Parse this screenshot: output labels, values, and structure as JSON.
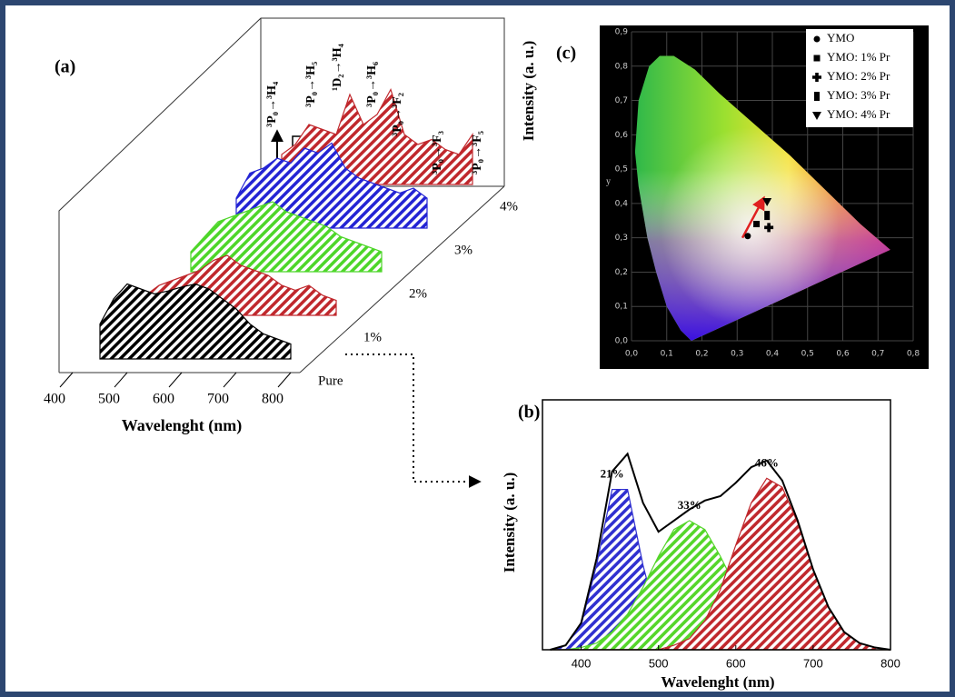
{
  "chart_data": [
    {
      "type": "waterfall",
      "panel": "(a)",
      "xlabel": "Wavelenght (nm)",
      "x": [
        450,
        475,
        500,
        525,
        550,
        575,
        600,
        625,
        650,
        675,
        700,
        725,
        750,
        775,
        800
      ],
      "xlim": [
        400,
        800
      ],
      "xticks": [
        400,
        500,
        600,
        700,
        800
      ],
      "ylim": [
        0,
        1
      ],
      "series": [
        {
          "name": "Pure",
          "color": "#000000",
          "values": [
            0.35,
            0.6,
            0.75,
            0.7,
            0.65,
            0.68,
            0.72,
            0.75,
            0.7,
            0.6,
            0.5,
            0.35,
            0.25,
            0.2,
            0.15
          ]
        },
        {
          "name": "1%",
          "color": "#c0282d",
          "values": [
            0.2,
            0.3,
            0.35,
            0.4,
            0.45,
            0.55,
            0.6,
            0.5,
            0.45,
            0.4,
            0.3,
            0.25,
            0.3,
            0.2,
            0.15
          ]
        },
        {
          "name": "2%",
          "color": "#4ed62a",
          "values": [
            0.2,
            0.35,
            0.5,
            0.55,
            0.6,
            0.65,
            0.7,
            0.6,
            0.55,
            0.5,
            0.45,
            0.35,
            0.3,
            0.25,
            0.2
          ]
        },
        {
          "name": "3%",
          "color": "#2424d4",
          "values": [
            0.3,
            0.55,
            0.6,
            0.7,
            0.65,
            0.8,
            0.75,
            0.85,
            0.6,
            0.5,
            0.45,
            0.4,
            0.35,
            0.4,
            0.3
          ]
        },
        {
          "name": "4%",
          "color": "#c0282d",
          "values": [
            0.3,
            0.4,
            0.6,
            0.55,
            0.5,
            0.9,
            0.6,
            0.7,
            0.95,
            0.5,
            0.4,
            0.45,
            0.35,
            0.3,
            0.5
          ]
        }
      ],
      "annotations": [
        "³P₀→³H₄",
        "³P₀→³H₅",
        "¹D₂→³H₄",
        "³P₀→³H₆",
        "³P₀→³F₂",
        "³P₀→³F₃",
        "³P₀→³F₅"
      ]
    },
    {
      "type": "area",
      "panel": "(b)",
      "xlabel": "Wavelenght (nm)",
      "ylabel": "Intensity (a. u.)",
      "x": [
        360,
        380,
        400,
        420,
        440,
        460,
        480,
        500,
        520,
        540,
        560,
        580,
        600,
        620,
        640,
        660,
        680,
        700,
        720,
        740,
        760,
        780,
        800
      ],
      "xlim": [
        350,
        800
      ],
      "xticks": [
        400,
        500,
        600,
        700,
        800
      ],
      "ylim": [
        0,
        1
      ],
      "series": [
        {
          "color": "#3030d0",
          "label": "21%",
          "values": [
            0,
            0.02,
            0.11,
            0.38,
            0.72,
            0.72,
            0.38,
            0.11,
            0.02,
            0,
            0,
            0,
            0,
            0,
            0,
            0,
            0,
            0,
            0,
            0,
            0,
            0,
            0
          ]
        },
        {
          "color": "#55d62a",
          "label": "33%",
          "values": [
            0,
            0,
            0.01,
            0.03,
            0.08,
            0.16,
            0.28,
            0.42,
            0.54,
            0.58,
            0.54,
            0.42,
            0.28,
            0.16,
            0.08,
            0.03,
            0.01,
            0,
            0,
            0,
            0,
            0,
            0
          ]
        },
        {
          "color": "#c0282d",
          "label": "46%",
          "values": [
            0,
            0,
            0,
            0,
            0,
            0,
            0,
            0,
            0.02,
            0.05,
            0.13,
            0.27,
            0.47,
            0.66,
            0.77,
            0.73,
            0.57,
            0.36,
            0.19,
            0.08,
            0.03,
            0.01,
            0
          ]
        },
        {
          "color": "#000000",
          "values": [
            0,
            0.02,
            0.12,
            0.41,
            0.8,
            0.88,
            0.66,
            0.53,
            0.58,
            0.63,
            0.67,
            0.69,
            0.75,
            0.82,
            0.85,
            0.76,
            0.58,
            0.36,
            0.19,
            0.08,
            0.03,
            0.01,
            0
          ]
        }
      ]
    },
    {
      "type": "scatter",
      "panel": "(c)",
      "ylabel": "y",
      "side_label": "Intensity (a. u.)",
      "xlim": [
        0,
        0.8
      ],
      "ylim": [
        0,
        0.9
      ],
      "grid": true,
      "xticks": [
        {
          "value": 0,
          "label": "0,0"
        },
        {
          "value": 0.1,
          "label": "0,1"
        },
        {
          "value": 0.2,
          "label": "0,2"
        },
        {
          "value": 0.3,
          "label": "0,3"
        },
        {
          "value": 0.4,
          "label": "0,4"
        },
        {
          "value": 0.5,
          "label": "0,5"
        },
        {
          "value": 0.6,
          "label": "0,6"
        },
        {
          "value": 0.7,
          "label": "0,7"
        },
        {
          "value": 0.8,
          "label": "0,8"
        }
      ],
      "yticks": [
        {
          "value": 0,
          "label": "0,0"
        },
        {
          "value": 0.1,
          "label": "0,1"
        },
        {
          "value": 0.2,
          "label": "0,2"
        },
        {
          "value": 0.3,
          "label": "0,3"
        },
        {
          "value": 0.4,
          "label": "0,4"
        },
        {
          "value": 0.5,
          "label": "0,5"
        },
        {
          "value": 0.6,
          "label": "0,6"
        },
        {
          "value": 0.7,
          "label": "0,7"
        },
        {
          "value": 0.8,
          "label": "0,8"
        },
        {
          "value": 0.9,
          "label": "0,9"
        }
      ],
      "series": [
        {
          "name": "YMO",
          "marker": "circle",
          "color": "#000000",
          "x": [
            0.33
          ],
          "values": [
            0.305
          ]
        },
        {
          "name": "YMO: 1% Pr",
          "marker": "square",
          "color": "#000000",
          "x": [
            0.355
          ],
          "values": [
            0.34
          ]
        },
        {
          "name": "YMO: 2% Pr",
          "marker": "plus",
          "color": "#000000",
          "x": [
            0.39
          ],
          "values": [
            0.33
          ]
        },
        {
          "name": "YMO: 3% Pr",
          "marker": "tall",
          "color": "#000000",
          "x": [
            0.385
          ],
          "values": [
            0.365
          ]
        },
        {
          "name": "YMO: 4% Pr",
          "marker": "triangle",
          "color": "#000000",
          "x": [
            0.385
          ],
          "values": [
            0.405
          ]
        }
      ]
    }
  ]
}
